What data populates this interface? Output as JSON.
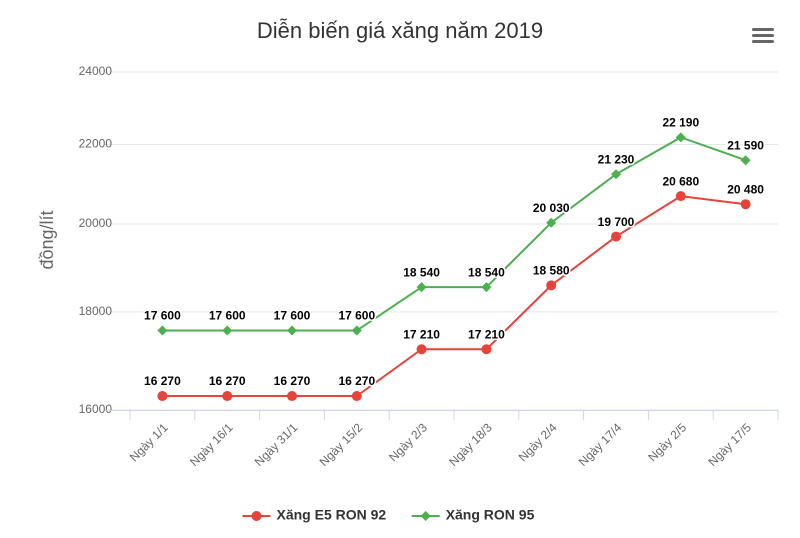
{
  "chart_data": {
    "type": "line",
    "title": "Diễn biến giá xăng năm 2019",
    "y_label": "đồng/lít",
    "categories": [
      "Ngày 1/1",
      "Ngày 16/1",
      "Ngày 31/1",
      "Ngày 15/2",
      "Ngày 2/3",
      "Ngày 18/3",
      "Ngày 2/4",
      "Ngày 17/4",
      "Ngày 2/5",
      "Ngày 17/5"
    ],
    "series": [
      {
        "name": "Xăng E5 RON 92",
        "color": "#e8433a",
        "marker": "circle",
        "values": [
          16270,
          16270,
          16270,
          16270,
          17210,
          17210,
          18580,
          19700,
          20680,
          20480
        ],
        "value_labels": [
          "16 270",
          "16 270",
          "16 270",
          "16 270",
          "17 210",
          "17 210",
          "18 580",
          "19 700",
          "20 680",
          "20 480"
        ]
      },
      {
        "name": "Xăng RON 95",
        "color": "#4caf50",
        "marker": "diamond",
        "values": [
          17600,
          17600,
          17600,
          17600,
          18540,
          18540,
          20030,
          21230,
          22190,
          21590
        ],
        "value_labels": [
          "17 600",
          "17 600",
          "17 600",
          "17 600",
          "18 540",
          "18 540",
          "20 030",
          "21 230",
          "22 190",
          "21 590"
        ]
      }
    ],
    "ylim": [
      16000,
      24000
    ],
    "yticks": [
      16000,
      18000,
      20000,
      22000,
      24000
    ],
    "log": true,
    "grid": true,
    "legend": "bottom"
  }
}
